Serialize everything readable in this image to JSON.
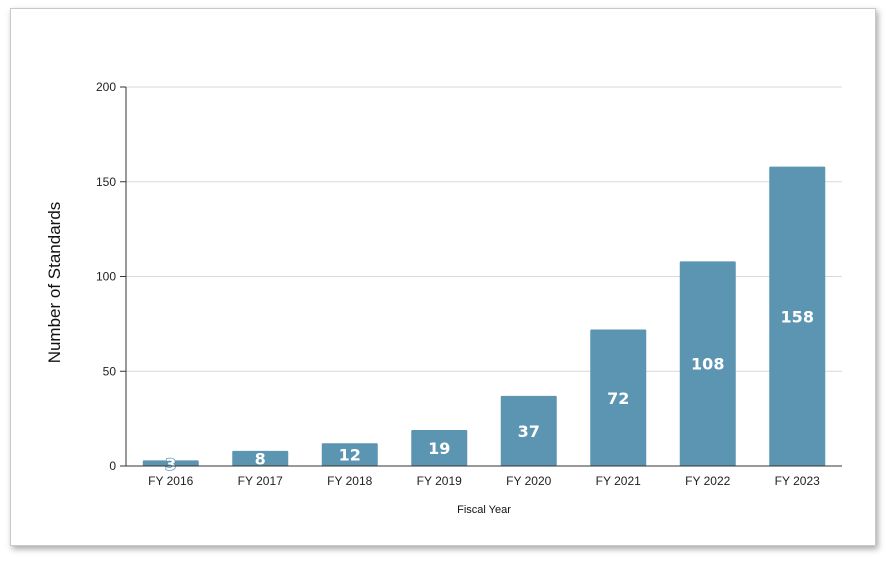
{
  "chart_data": {
    "type": "bar",
    "title": "",
    "xlabel": "Fiscal Year",
    "ylabel": "Number of Standards",
    "categories": [
      "FY 2016",
      "FY 2017",
      "FY 2018",
      "FY 2019",
      "FY 2020",
      "FY 2021",
      "FY 2022",
      "FY 2023"
    ],
    "values": [
      3,
      8,
      12,
      19,
      37,
      72,
      108,
      158
    ],
    "data_labels": [
      "3",
      "8",
      "12",
      "19",
      "37",
      "72",
      "108",
      "158"
    ],
    "ylim": [
      0,
      200
    ],
    "yticks": [
      "0",
      "50",
      "100",
      "150",
      "200"
    ],
    "ytick_values": [
      0,
      50,
      100,
      150,
      200
    ],
    "grid": true,
    "legend": "none",
    "bar_color": "#5b95b2",
    "label_color": "#ffffff"
  }
}
